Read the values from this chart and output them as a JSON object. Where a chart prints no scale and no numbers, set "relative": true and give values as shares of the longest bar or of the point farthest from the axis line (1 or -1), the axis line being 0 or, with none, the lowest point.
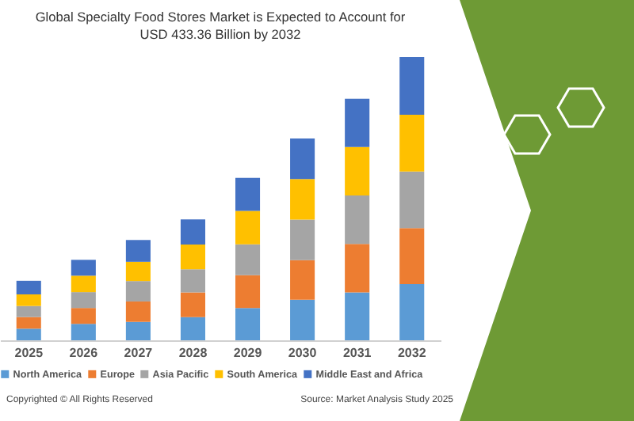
{
  "chart_data": {
    "type": "bar",
    "title": "Global Specialty Food Stores Market is Expected to Account for USD 433.36 Billion by 2032",
    "categories": [
      "2025",
      "2026",
      "2027",
      "2028",
      "2029",
      "2030",
      "2031",
      "2032"
    ],
    "stacked": true,
    "relative": true,
    "legend": "bottom",
    "series": [
      {
        "name": "North America",
        "color": "#5b9bd5",
        "values": [
          0.041,
          0.058,
          0.065,
          0.082,
          0.114,
          0.143,
          0.169,
          0.198
        ]
      },
      {
        "name": "Europe",
        "color": "#ed7d31",
        "values": [
          0.041,
          0.056,
          0.072,
          0.087,
          0.116,
          0.14,
          0.171,
          0.198
        ]
      },
      {
        "name": "Asia Pacific",
        "color": "#a5a5a5",
        "values": [
          0.039,
          0.056,
          0.072,
          0.082,
          0.109,
          0.143,
          0.171,
          0.2
        ]
      },
      {
        "name": "South America",
        "color": "#ffc000",
        "values": [
          0.041,
          0.058,
          0.068,
          0.087,
          0.118,
          0.143,
          0.171,
          0.2
        ]
      },
      {
        "name": "Middle East and Africa",
        "color": "#4472c4",
        "values": [
          0.048,
          0.056,
          0.077,
          0.089,
          0.116,
          0.143,
          0.171,
          0.204
        ]
      }
    ],
    "annotations": [
      "Copyrighted © All Rights Reserved",
      "Source: Market Analysis Study 2025"
    ]
  }
}
